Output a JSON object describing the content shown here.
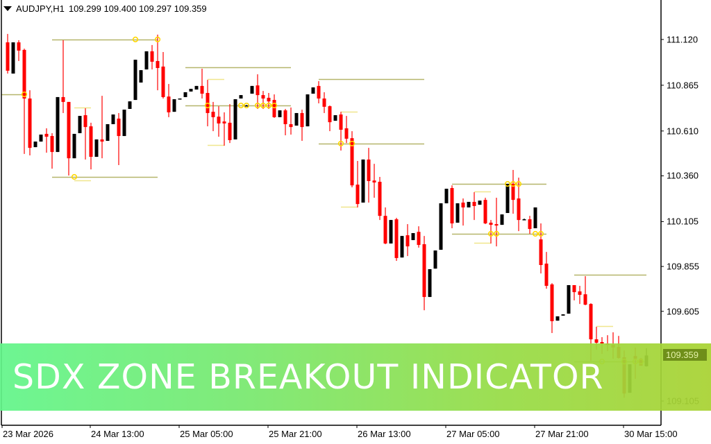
{
  "header": {
    "symbol": "AUDJPY,H1",
    "ohlc": "109.299 109.400 109.297 109.359"
  },
  "current_price_label": "109.359",
  "banner": {
    "title": "SDX ZONE BREAKOUT INDICATOR"
  },
  "colors": {
    "bull": "#000000",
    "bear": "#ff0000",
    "zone_line": "#b5b56a",
    "inner_line": "#f0e68c",
    "marker": "#ffd700",
    "banner_start": "#62f58a",
    "banner_end": "#a8d232"
  },
  "chart_data": {
    "type": "candlestick",
    "symbol": "AUDJPY",
    "timeframe": "H1",
    "ylim": [
      108.97,
      111.34
    ],
    "y_ticks": [
      "111.120",
      "110.865",
      "110.610",
      "110.360",
      "110.105",
      "109.855",
      "109.605",
      "109.105"
    ],
    "x_ticks": [
      {
        "bar": -1,
        "label": "23 Mar 2026"
      },
      {
        "bar": 15,
        "label": "24 Mar 13:00"
      },
      {
        "bar": 31,
        "label": "25 Mar 05:00"
      },
      {
        "bar": 47,
        "label": "25 Mar 21:00"
      },
      {
        "bar": 63,
        "label": "26 Mar 13:00"
      },
      {
        "bar": 79,
        "label": "27 Mar 05:00"
      },
      {
        "bar": 95,
        "label": "27 Mar 21:00"
      },
      {
        "bar": 111,
        "label": "30 Mar 15:00"
      }
    ],
    "ohlc_fields": [
      "open",
      "high",
      "low",
      "close"
    ],
    "candles": [
      [
        111.104,
        111.151,
        110.93,
        110.946
      ],
      [
        110.93,
        111.104,
        110.93,
        111.104
      ],
      [
        111.104,
        111.116,
        111.0,
        111.058
      ],
      [
        111.062,
        111.069,
        110.482,
        110.791
      ],
      [
        110.791,
        110.837,
        110.474,
        110.516
      ],
      [
        110.52,
        110.551,
        110.52,
        110.551
      ],
      [
        110.551,
        110.59,
        110.551,
        110.59
      ],
      [
        110.594,
        110.625,
        110.489,
        110.578
      ],
      [
        110.582,
        110.598,
        110.4,
        110.493
      ],
      [
        110.493,
        110.799,
        110.493,
        110.799
      ],
      [
        110.799,
        111.116,
        110.71,
        110.772
      ],
      [
        110.772,
        110.772,
        110.362,
        110.458
      ],
      [
        110.458,
        110.594,
        110.458,
        110.594
      ],
      [
        110.598,
        110.694,
        110.598,
        110.694
      ],
      [
        110.698,
        110.737,
        110.451,
        110.632
      ],
      [
        110.636,
        110.656,
        110.396,
        110.466
      ],
      [
        110.466,
        110.563,
        110.466,
        110.563
      ],
      [
        110.563,
        110.806,
        110.458,
        110.551
      ],
      [
        110.555,
        110.648,
        110.555,
        110.648
      ],
      [
        110.648,
        110.702,
        110.648,
        110.702
      ],
      [
        110.679,
        110.71,
        110.42,
        110.582
      ],
      [
        110.582,
        110.729,
        110.582,
        110.729
      ],
      [
        110.733,
        110.775,
        110.733,
        110.775
      ],
      [
        110.783,
        111.007,
        110.783,
        111.007
      ],
      [
        110.88,
        110.949,
        110.88,
        110.949
      ],
      [
        110.953,
        111.054,
        110.953,
        111.054
      ],
      [
        111.054,
        111.089,
        110.953,
        110.996
      ],
      [
        111.0,
        111.147,
        110.837,
        110.961
      ],
      [
        110.969,
        111.05,
        110.791,
        110.799
      ],
      [
        110.802,
        110.872,
        110.687,
        110.714
      ],
      [
        110.717,
        110.787,
        110.717,
        110.787
      ],
      [
        110.787,
        110.791,
        110.787,
        110.791
      ],
      [
        110.799,
        110.826,
        110.799,
        110.826
      ],
      [
        110.83,
        110.845,
        110.83,
        110.845
      ],
      [
        110.841,
        110.861,
        110.841,
        110.861
      ],
      [
        110.861,
        110.957,
        110.791,
        110.818
      ],
      [
        110.822,
        110.895,
        110.636,
        110.71
      ],
      [
        110.717,
        110.772,
        110.609,
        110.687
      ],
      [
        110.69,
        110.748,
        110.578,
        110.652
      ],
      [
        110.663,
        110.714,
        110.528,
        110.652
      ],
      [
        110.656,
        110.76,
        110.543,
        110.559
      ],
      [
        110.563,
        110.787,
        110.563,
        110.787
      ],
      [
        110.791,
        110.81,
        110.791,
        110.81
      ],
      [
        110.752,
        110.756,
        110.748,
        110.752
      ],
      [
        110.818,
        110.861,
        110.818,
        110.861
      ],
      [
        110.864,
        110.926,
        110.733,
        110.81
      ],
      [
        110.81,
        110.833,
        110.733,
        110.791
      ],
      [
        110.795,
        110.822,
        110.733,
        110.775
      ],
      [
        110.783,
        110.814,
        110.683,
        110.687
      ],
      [
        110.687,
        110.725,
        110.687,
        110.725
      ],
      [
        110.725,
        110.733,
        110.586,
        110.648
      ],
      [
        110.648,
        110.741,
        110.59,
        110.632
      ],
      [
        110.64,
        110.71,
        110.64,
        110.71
      ],
      [
        110.71,
        110.729,
        110.555,
        110.632
      ],
      [
        110.636,
        110.814,
        110.636,
        110.814
      ],
      [
        110.818,
        110.853,
        110.818,
        110.853
      ],
      [
        110.861,
        110.888,
        110.764,
        110.791
      ],
      [
        110.791,
        110.826,
        110.71,
        110.745
      ],
      [
        110.748,
        110.752,
        110.609,
        110.659
      ],
      [
        110.667,
        110.698,
        110.667,
        110.698
      ],
      [
        110.702,
        110.717,
        110.501,
        110.617
      ],
      [
        110.625,
        110.694,
        110.543,
        110.567
      ],
      [
        110.57,
        110.609,
        110.296,
        110.307
      ],
      [
        110.311,
        110.443,
        110.184,
        110.203
      ],
      [
        110.211,
        110.451,
        110.211,
        110.451
      ],
      [
        110.451,
        110.516,
        110.211,
        110.331
      ],
      [
        110.334,
        110.427,
        110.238,
        110.323
      ],
      [
        110.327,
        110.354,
        110.114,
        110.137
      ],
      [
        110.137,
        110.184,
        109.979,
        109.983
      ],
      [
        109.983,
        110.114,
        109.983,
        110.114
      ],
      [
        110.118,
        110.126,
        109.886,
        109.902
      ],
      [
        109.905,
        110.025,
        109.905,
        110.025
      ],
      [
        110.029,
        110.091,
        109.913,
        109.967
      ],
      [
        110.002,
        110.041,
        110.002,
        110.041
      ],
      [
        110.048,
        110.079,
        109.96,
        109.975
      ],
      [
        109.979,
        110.025,
        109.611,
        109.685
      ],
      [
        109.685,
        109.84,
        109.685,
        109.84
      ],
      [
        109.843,
        109.944,
        109.843,
        109.944
      ],
      [
        109.948,
        110.207,
        109.948,
        110.207
      ],
      [
        110.207,
        110.288,
        110.207,
        110.288
      ],
      [
        110.292,
        110.307,
        110.068,
        110.095
      ],
      [
        110.099,
        110.207,
        110.099,
        110.207
      ],
      [
        110.211,
        110.234,
        110.083,
        110.184
      ],
      [
        110.184,
        110.215,
        110.184,
        110.215
      ],
      [
        110.215,
        110.269,
        110.114,
        110.192
      ],
      [
        110.199,
        110.222,
        110.199,
        110.222
      ],
      [
        110.226,
        110.238,
        110.091,
        110.095
      ],
      [
        110.099,
        110.114,
        109.983,
        110.087
      ],
      [
        110.091,
        110.238,
        109.967,
        110.083
      ],
      [
        110.087,
        110.145,
        110.087,
        110.145
      ],
      [
        110.153,
        110.315,
        110.153,
        110.315
      ],
      [
        110.315,
        110.393,
        110.149,
        110.226
      ],
      [
        110.234,
        110.35,
        110.052,
        110.114
      ],
      [
        110.118,
        110.122,
        110.114,
        110.118
      ],
      [
        110.118,
        110.137,
        110.037,
        110.064
      ],
      [
        110.068,
        110.184,
        110.068,
        110.184
      ],
      [
        110.006,
        110.095,
        109.816,
        109.863
      ],
      [
        109.871,
        109.936,
        109.731,
        109.747
      ],
      [
        109.755,
        109.762,
        109.484,
        109.55
      ],
      [
        109.553,
        109.577,
        109.553,
        109.577
      ],
      [
        109.581,
        109.588,
        109.581,
        109.588
      ],
      [
        109.592,
        109.751,
        109.592,
        109.751
      ],
      [
        109.751,
        109.751,
        109.666,
        109.712
      ],
      [
        109.716,
        109.747,
        109.646,
        109.697
      ],
      [
        109.7,
        109.801,
        109.639,
        109.642
      ],
      [
        109.646,
        109.65,
        109.329,
        109.449
      ],
      [
        109.449,
        109.519,
        109.391,
        109.43
      ],
      [
        109.434,
        109.461,
        109.368,
        109.426
      ],
      [
        109.426,
        109.472,
        109.383,
        109.418
      ],
      [
        109.418,
        109.488,
        109.341,
        109.403
      ],
      [
        109.407,
        109.468,
        109.341,
        109.345
      ],
      [
        109.349,
        109.387,
        109.124,
        109.147
      ],
      [
        109.151,
        109.31,
        109.151,
        109.31
      ],
      [
        109.356,
        109.403,
        109.229,
        109.341
      ],
      [
        109.341,
        109.345,
        109.302,
        109.302
      ],
      [
        109.299,
        109.4,
        109.297,
        109.359
      ]
    ],
    "zone_lines": [
      {
        "price": 110.814,
        "from": -1.4,
        "to": 3,
        "kind": "zone"
      },
      {
        "price": 111.12,
        "from": 8,
        "to": 27,
        "kind": "zone"
      },
      {
        "price": 110.354,
        "from": 8,
        "to": 27,
        "kind": "zone"
      },
      {
        "price": 110.741,
        "from": 12,
        "to": 15,
        "kind": "inner"
      },
      {
        "price": 110.334,
        "from": 12,
        "to": 15,
        "kind": "inner"
      },
      {
        "price": 110.965,
        "from": 32,
        "to": 51,
        "kind": "zone"
      },
      {
        "price": 110.752,
        "from": 32,
        "to": 51,
        "kind": "zone"
      },
      {
        "price": 110.899,
        "from": 36,
        "to": 39,
        "kind": "inner"
      },
      {
        "price": 110.532,
        "from": 36,
        "to": 39,
        "kind": "inner"
      },
      {
        "price": 110.899,
        "from": 56,
        "to": 75,
        "kind": "zone"
      },
      {
        "price": 110.54,
        "from": 56,
        "to": 75,
        "kind": "zone"
      },
      {
        "price": 110.717,
        "from": 60,
        "to": 63,
        "kind": "inner"
      },
      {
        "price": 110.188,
        "from": 60,
        "to": 63,
        "kind": "inner"
      },
      {
        "price": 110.315,
        "from": 80,
        "to": 97,
        "kind": "zone"
      },
      {
        "price": 110.037,
        "from": 80,
        "to": 97,
        "kind": "zone"
      },
      {
        "price": 110.273,
        "from": 84,
        "to": 87,
        "kind": "inner"
      },
      {
        "price": 109.987,
        "from": 84,
        "to": 87,
        "kind": "inner"
      },
      {
        "price": 109.809,
        "from": 102,
        "to": 115,
        "kind": "zone"
      },
      {
        "price": 109.325,
        "from": 102,
        "to": 115,
        "kind": "zone"
      },
      {
        "price": 109.523,
        "from": 106,
        "to": 109,
        "kind": "inner"
      }
    ],
    "breakout_markers": [
      {
        "bar": 3,
        "price": 110.814
      },
      {
        "bar": 23,
        "price": 111.12
      },
      {
        "bar": 27,
        "price": 111.12
      },
      {
        "bar": 12,
        "price": 110.354
      },
      {
        "bar": 36,
        "price": 110.752
      },
      {
        "bar": 42,
        "price": 110.752
      },
      {
        "bar": 43,
        "price": 110.752
      },
      {
        "bar": 45,
        "price": 110.752
      },
      {
        "bar": 46,
        "price": 110.752
      },
      {
        "bar": 47,
        "price": 110.752
      },
      {
        "bar": 48,
        "price": 110.752
      },
      {
        "bar": 60,
        "price": 110.54
      },
      {
        "bar": 62,
        "price": 110.54
      },
      {
        "bar": 90,
        "price": 110.315
      },
      {
        "bar": 91,
        "price": 110.315
      },
      {
        "bar": 92,
        "price": 110.315
      },
      {
        "bar": 87,
        "price": 110.037
      },
      {
        "bar": 88,
        "price": 110.037
      },
      {
        "bar": 95,
        "price": 110.037
      },
      {
        "bar": 96,
        "price": 110.037
      },
      {
        "bar": 107,
        "price": 109.325
      },
      {
        "bar": 111,
        "price": 109.325
      },
      {
        "bar": 113,
        "price": 109.325
      },
      {
        "bar": 114,
        "price": 109.325
      }
    ]
  }
}
